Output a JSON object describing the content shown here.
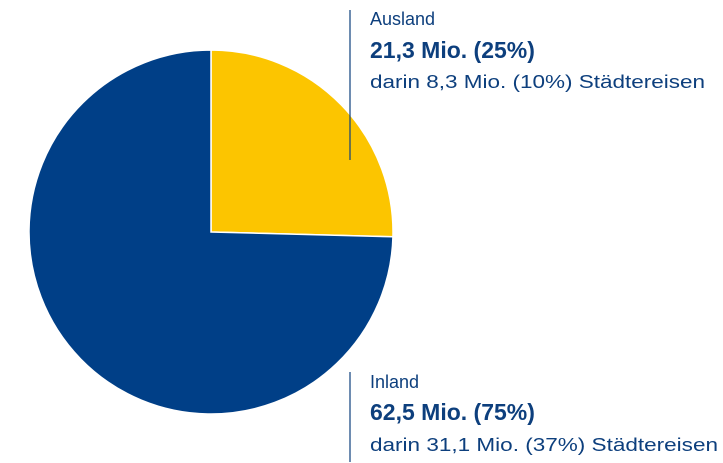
{
  "chart_data": {
    "type": "pie",
    "categories": [
      "Ausland",
      "Inland"
    ],
    "values": [
      21.3,
      62.5
    ],
    "value_labels": [
      "21,3 Mio. (25%)",
      "62,5 Mio. (75%)"
    ],
    "annotations": [
      "darin 8,3 Mio. (10%) Städtereisen",
      "darin 31,1 Mio. (37%) Städtereisen"
    ],
    "colors": [
      "#fcc500",
      "#003f87"
    ]
  }
}
